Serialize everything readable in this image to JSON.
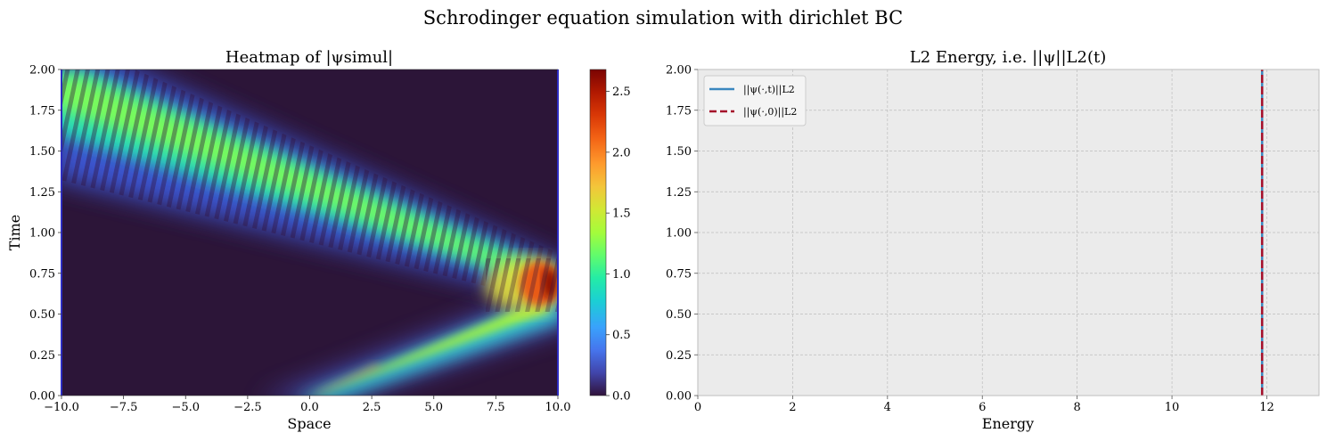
{
  "figure_title": "Schrodinger equation simulation with dirichlet BC",
  "colors": {
    "grid": "#bdbdbd",
    "axes_bg": "#ebebeb",
    "line_energy": "#3a87bf",
    "line_initial": "#a50f2a",
    "boundary": "#2b2bff"
  },
  "chart_data": [
    {
      "type": "heatmap",
      "title": "Heatmap of |ψsimul|",
      "xlabel": "Space",
      "ylabel": "Time",
      "xlim": [
        -10.0,
        10.0
      ],
      "ylim": [
        0.0,
        2.0
      ],
      "x_ticks": [
        "−10.0",
        "−7.5",
        "−5.0",
        "−2.5",
        "0.0",
        "2.5",
        "5.0",
        "7.5",
        "10.0"
      ],
      "y_ticks": [
        "0.00",
        "0.25",
        "0.50",
        "0.75",
        "1.00",
        "1.25",
        "1.50",
        "1.75",
        "2.00"
      ],
      "colorbar": {
        "colormap": "turbo",
        "range": [
          0.0,
          2.68
        ],
        "ticks": [
          "0.0",
          "0.5",
          "1.0",
          "1.5",
          "2.0",
          "2.5"
        ]
      },
      "features": [
        {
          "name": "incident wave packet",
          "x_start": 0.0,
          "t_start": 0.0,
          "x_end": 10.0,
          "t_end": 0.6,
          "peak": 1.2
        },
        {
          "name": "reflection interference",
          "x": 9.3,
          "t": 0.7,
          "peak": 2.68
        },
        {
          "name": "reflected wave packet",
          "x_start": 10.0,
          "t_start": 0.7,
          "x_end": -10.0,
          "t_end": 1.9,
          "peak": 1.1
        }
      ]
    },
    {
      "type": "line",
      "title": "L2 Energy, i.e. ||ψ||L2(t)",
      "xlabel": "Energy",
      "ylabel": "",
      "xlim": [
        0,
        13.1
      ],
      "ylim": [
        0.0,
        2.0
      ],
      "x_ticks": [
        "0",
        "2",
        "4",
        "6",
        "8",
        "10",
        "12"
      ],
      "y_ticks": [
        "0.00",
        "0.25",
        "0.50",
        "0.75",
        "1.00",
        "1.25",
        "1.50",
        "1.75",
        "2.00"
      ],
      "grid": true,
      "legend_position": "top-left",
      "series": [
        {
          "name": "||ψ(·,t)||L2",
          "style": "solid",
          "x": [
            11.9,
            11.9
          ],
          "y": [
            0.0,
            2.0
          ]
        },
        {
          "name": "||ψ(·,0)||L2",
          "style": "dashed",
          "x": [
            11.9,
            11.9
          ],
          "y": [
            0.0,
            2.0
          ]
        }
      ]
    }
  ]
}
